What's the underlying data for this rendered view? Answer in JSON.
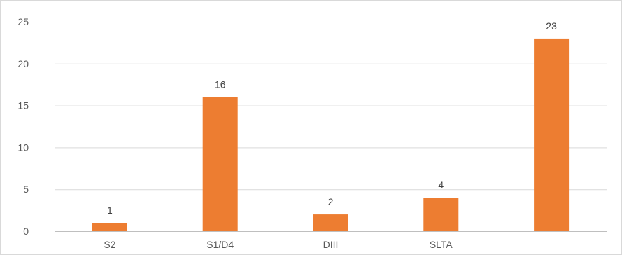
{
  "chart_data": {
    "type": "bar",
    "title": "",
    "xlabel": "",
    "ylabel": "",
    "categories": [
      "S2",
      "S1/D4",
      "DIII",
      "SLTA",
      ""
    ],
    "values": [
      1,
      16,
      2,
      4,
      23
    ],
    "data_labels": [
      "1",
      "16",
      "2",
      "4",
      "23"
    ],
    "y_ticks": [
      "0",
      "5",
      "10",
      "15",
      "20",
      "25"
    ],
    "ylim": [
      0,
      25
    ],
    "grid": true,
    "legend": "none",
    "bar_color": "#ed7d31"
  }
}
